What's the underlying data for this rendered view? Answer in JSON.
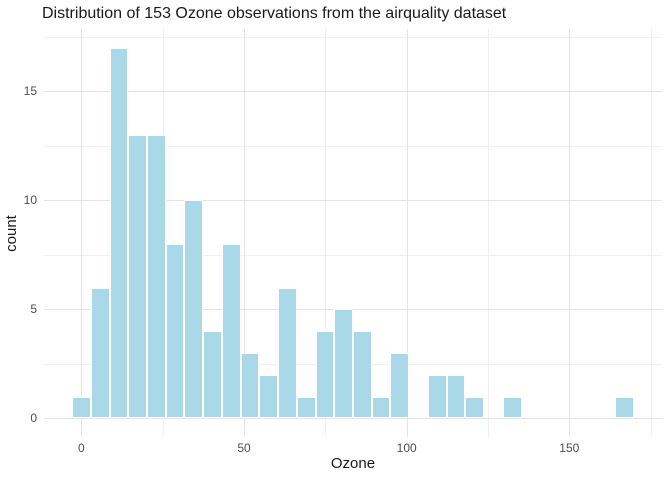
{
  "figure": {
    "background": "#FFFFFF"
  },
  "chart_data": {
    "type": "bar",
    "subtype": "histogram",
    "title": "Distribution of 153 Ozone observations from the airquality dataset",
    "xlabel": "Ozone",
    "ylabel": "count",
    "bin_width": 5.76,
    "bin_centers": [
      0,
      5.76,
      11.52,
      17.28,
      23.03,
      28.79,
      34.55,
      40.31,
      46.07,
      51.83,
      57.59,
      63.34,
      69.1,
      74.86,
      80.62,
      86.38,
      92.14,
      97.9,
      103.65,
      109.41,
      115.17,
      120.93,
      126.69,
      132.45,
      138.21,
      143.96,
      149.72,
      155.48,
      161.24,
      167.0
    ],
    "counts": [
      1,
      6,
      17,
      13,
      13,
      8,
      10,
      4,
      8,
      3,
      2,
      6,
      1,
      4,
      5,
      4,
      1,
      3,
      0,
      2,
      2,
      1,
      0,
      1,
      0,
      0,
      0,
      0,
      0,
      1
    ],
    "x_ticks": [
      0,
      50,
      100,
      150
    ],
    "x_minor_ticks": [
      25,
      75,
      125,
      175
    ],
    "y_ticks": [
      0,
      5,
      10,
      15
    ],
    "y_minor_ticks": [
      2.5,
      7.5,
      12.5,
      17.5
    ],
    "xlim": [
      -11.5,
      178.5
    ],
    "ylim": [
      -0.85,
      17.85
    ],
    "grid": true,
    "legend_position": "none",
    "colors": {
      "bar_fill": "#A9D8E9",
      "bar_border": "#FFFFFF",
      "grid_major": "#E4E4E4",
      "grid_minor": "#F0F0F0",
      "tick_label": "#4D4D4D",
      "axis_title": "#1A1A1A",
      "title": "#1A1A1A"
    }
  }
}
